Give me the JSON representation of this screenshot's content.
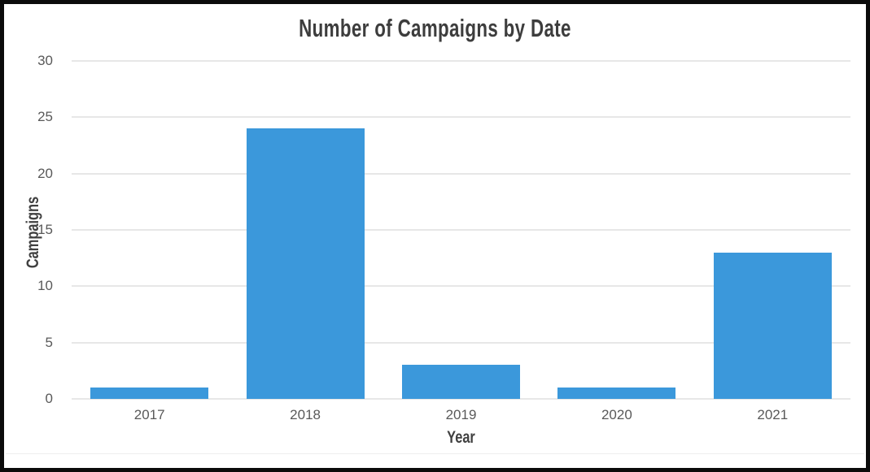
{
  "chart_data": {
    "type": "bar",
    "title": "Number of Campaigns by Date",
    "xlabel": "Year",
    "ylabel": "Campaigns",
    "categories": [
      "2017",
      "2018",
      "2019",
      "2020",
      "2021"
    ],
    "values": [
      1,
      24,
      3,
      1,
      13
    ],
    "ylim": [
      0,
      30
    ],
    "yticks": [
      0,
      5,
      10,
      15,
      20,
      25,
      30
    ],
    "grid": "horizontal-light",
    "legend": "none",
    "bar_color": "#3b98db",
    "gridline_color": "#e7e7e7",
    "tick_label_color": "#595959",
    "title_color": "#3d3d3d",
    "frame_border_color": "#0b0b0b"
  }
}
